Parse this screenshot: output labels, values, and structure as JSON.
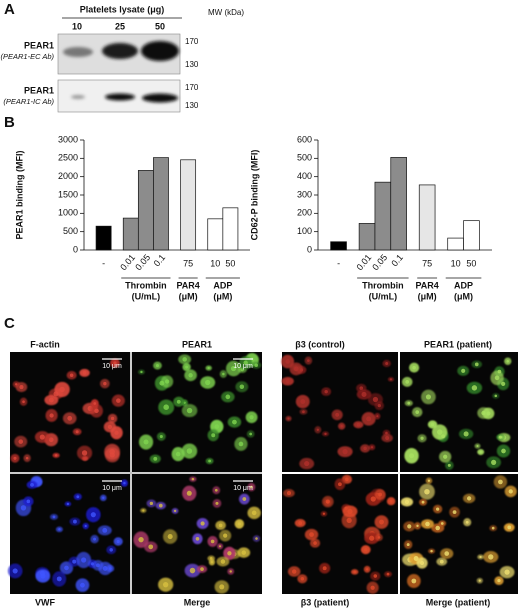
{
  "panel_a": {
    "letter": "A",
    "header": "Platelets lysate (μg)",
    "lanes": [
      "10",
      "25",
      "50"
    ],
    "mw_label": "MW (kDa)",
    "blots": [
      {
        "name": "PEAR1",
        "antibody": "(PEAR1-EC Ab)",
        "markers": [
          "170",
          "130"
        ]
      },
      {
        "name": "PEAR1",
        "antibody": "(PEAR1-IC Ab)",
        "markers": [
          "170",
          "130"
        ]
      }
    ]
  },
  "panel_b": {
    "letter": "B"
  },
  "chart_data": [
    {
      "type": "bar",
      "ylabel": "PEAR1 binding (MFI)",
      "ylim": [
        0,
        3000
      ],
      "yticks": [
        0,
        500,
        1000,
        1500,
        2000,
        2500,
        3000
      ],
      "groups": [
        {
          "categories": [
            "-"
          ],
          "values": [
            650
          ],
          "color": "#000000"
        },
        {
          "name": "Thrombin",
          "unit": "(U/mL)",
          "categories": [
            "0.01",
            "0.05",
            "0.1"
          ],
          "values": [
            870,
            2170,
            2520
          ],
          "color": "#8c8c8c"
        },
        {
          "name": "PAR4",
          "unit": "(μM)",
          "categories": [
            "75"
          ],
          "values": [
            2460
          ],
          "color": "#e6e6e6"
        },
        {
          "name": "ADP",
          "unit": "(μM)",
          "categories": [
            "10",
            "50"
          ],
          "values": [
            850,
            1150
          ],
          "color": "#ffffff"
        }
      ]
    },
    {
      "type": "bar",
      "ylabel": "CD62-P binding (MFI)",
      "ylim": [
        0,
        600
      ],
      "yticks": [
        0,
        100,
        200,
        300,
        400,
        500,
        600
      ],
      "groups": [
        {
          "categories": [
            "-"
          ],
          "values": [
            45
          ],
          "color": "#000000"
        },
        {
          "name": "Thrombin",
          "unit": "(U/mL)",
          "categories": [
            "0.01",
            "0.05",
            "0.1"
          ],
          "values": [
            145,
            370,
            505
          ],
          "color": "#8c8c8c"
        },
        {
          "name": "PAR4",
          "unit": "(μM)",
          "categories": [
            "75"
          ],
          "values": [
            355
          ],
          "color": "#e6e6e6"
        },
        {
          "name": "ADP",
          "unit": "(μM)",
          "categories": [
            "10",
            "50"
          ],
          "values": [
            65,
            160
          ],
          "color": "#ffffff"
        }
      ]
    }
  ],
  "panel_c": {
    "letter": "C",
    "captions": [
      "F-actin",
      "PEAR1",
      "VWF",
      "Merge",
      "β3 (control)",
      "PEAR1 (patient)",
      "β3 (patient)",
      "Merge (patient)"
    ],
    "scale_bars": [
      "10 μm",
      "10 μm",
      "10 μm",
      "10 μm"
    ]
  }
}
